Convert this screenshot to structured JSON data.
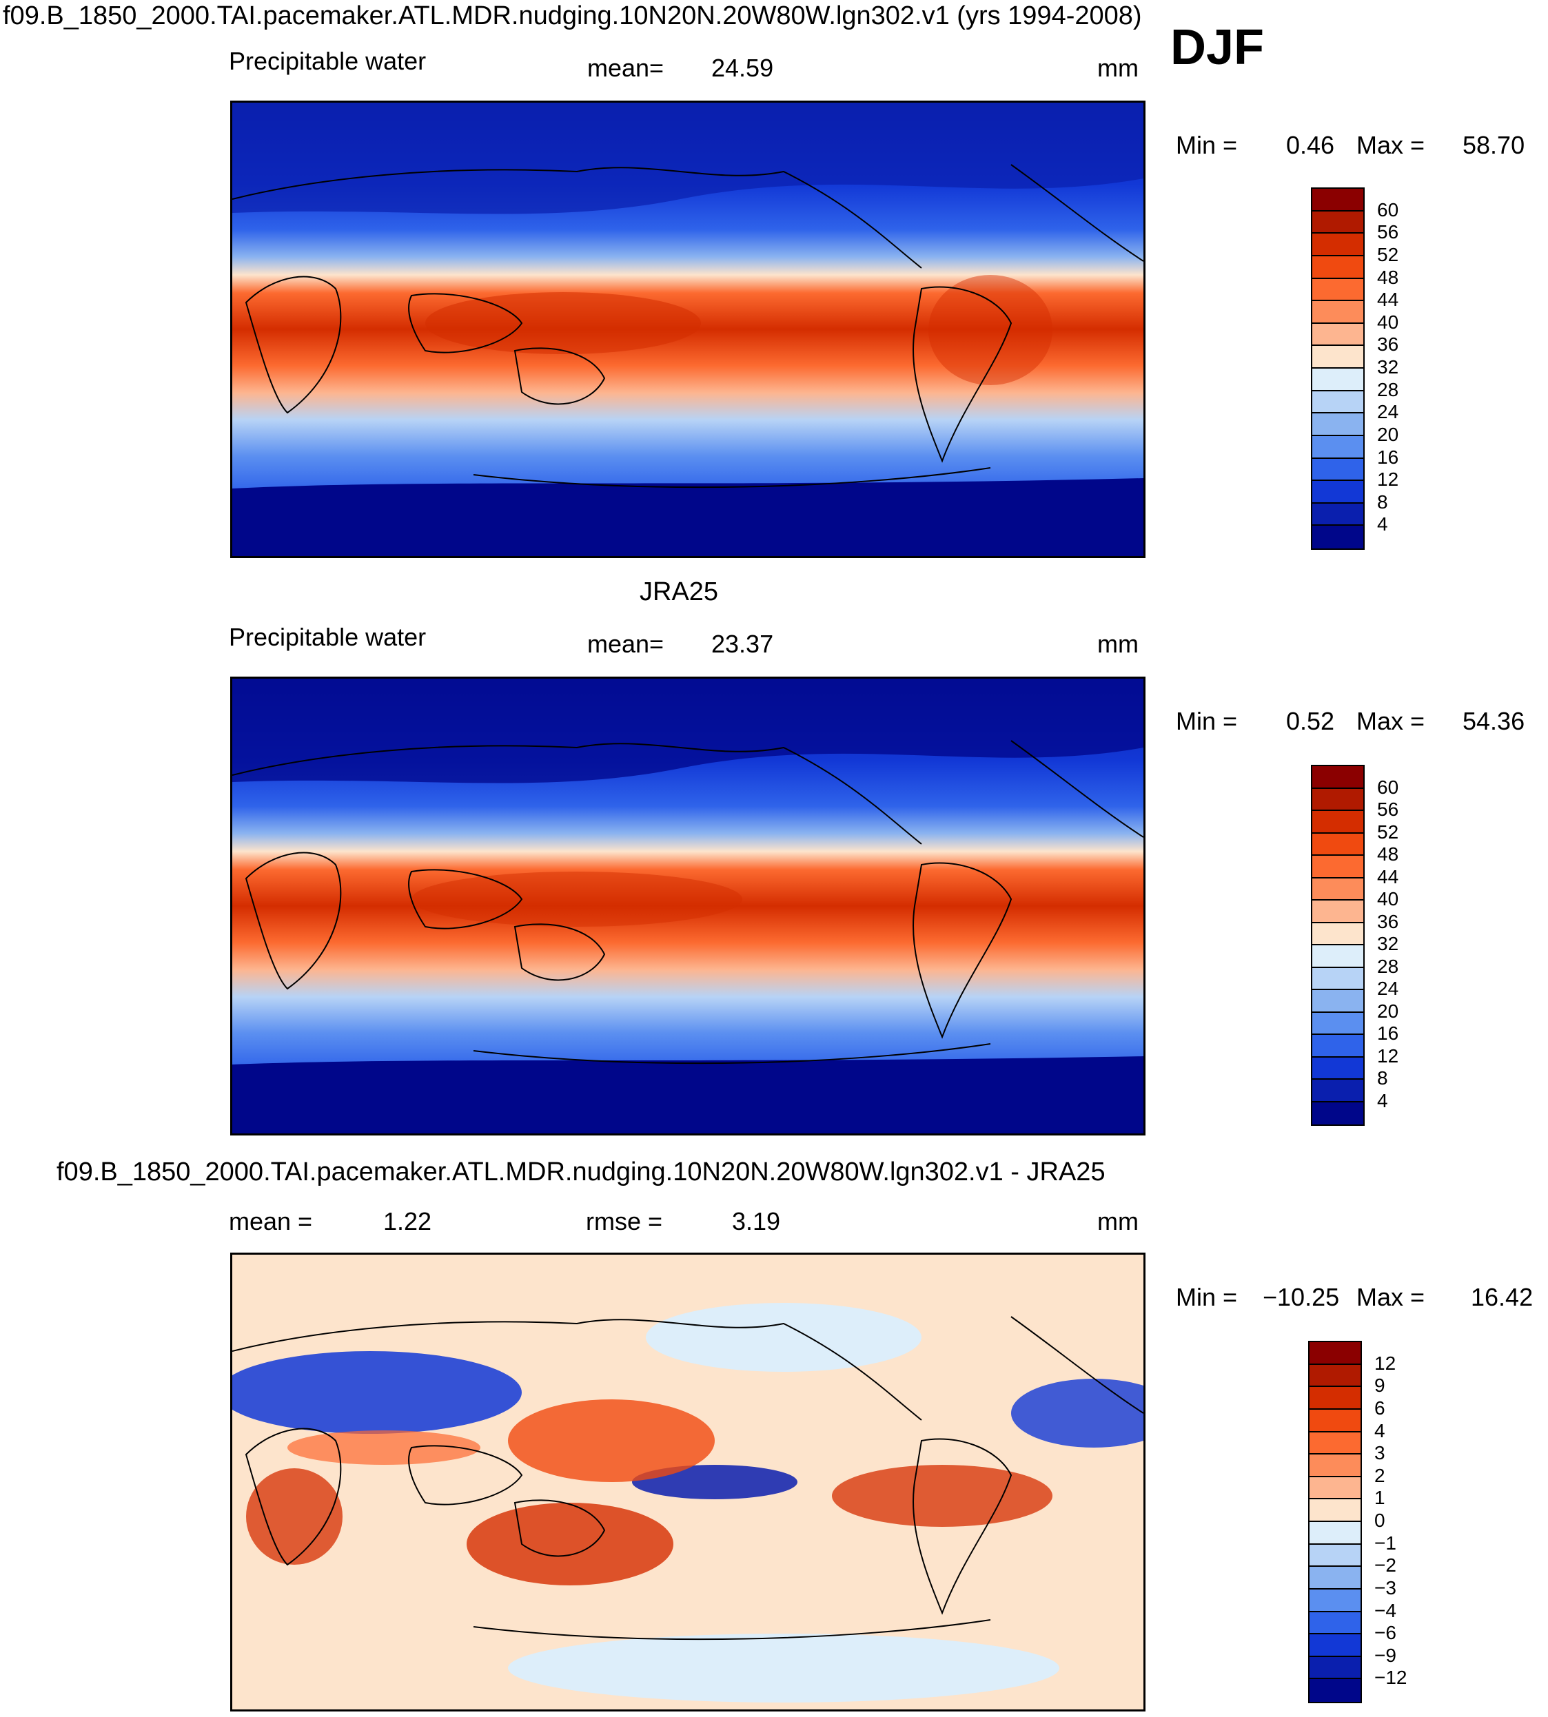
{
  "title": "f09.B_1850_2000.TAI.pacemaker.ATL.MDR.nudging.10N20N.20W80W.lgn302.v1 (yrs 1994-2008)",
  "season": "DJF",
  "chart_data": [
    {
      "type": "heatmap",
      "panel_title": "",
      "variable": "Precipitable water",
      "stat_label": "mean=",
      "stat_value": "24.59",
      "units": "mm",
      "min_label": "Min =",
      "min_value": "0.46",
      "max_label": "Max =",
      "max_value": "58.70",
      "colorbar_levels": [
        "60",
        "56",
        "52",
        "48",
        "44",
        "40",
        "36",
        "32",
        "28",
        "24",
        "20",
        "16",
        "12",
        "8",
        "4"
      ],
      "colorbar_colors": [
        "#8b0000",
        "#b01a00",
        "#d42d00",
        "#f04a10",
        "#fc6a30",
        "#fd8c5a",
        "#fdb590",
        "#fde4cc",
        "#ddeefa",
        "#b7d3f6",
        "#8ab3f0",
        "#5b8ff0",
        "#2f63ea",
        "#1238d6",
        "#0a1fae",
        "#00068a"
      ]
    },
    {
      "type": "heatmap",
      "panel_title": "JRA25",
      "variable": "Precipitable water",
      "stat_label": "mean=",
      "stat_value": "23.37",
      "units": "mm",
      "min_label": "Min =",
      "min_value": "0.52",
      "max_label": "Max =",
      "max_value": "54.36",
      "colorbar_levels": [
        "60",
        "56",
        "52",
        "48",
        "44",
        "40",
        "36",
        "32",
        "28",
        "24",
        "20",
        "16",
        "12",
        "8",
        "4"
      ],
      "colorbar_colors": [
        "#8b0000",
        "#b01a00",
        "#d42d00",
        "#f04a10",
        "#fc6a30",
        "#fd8c5a",
        "#fdb590",
        "#fde4cc",
        "#ddeefa",
        "#b7d3f6",
        "#8ab3f0",
        "#5b8ff0",
        "#2f63ea",
        "#1238d6",
        "#0a1fae",
        "#00068a"
      ]
    },
    {
      "type": "heatmap",
      "panel_title": "f09.B_1850_2000.TAI.pacemaker.ATL.MDR.nudging.10N20N.20W80W.lgn302.v1 - JRA25",
      "variable": "",
      "stat_label": "mean =",
      "stat_value": "1.22",
      "stat2_label": "rmse =",
      "stat2_value": "3.19",
      "units": "mm",
      "min_label": "Min =",
      "min_value": "−10.25",
      "max_label": "Max =",
      "max_value": "16.42",
      "colorbar_levels": [
        "12",
        "9",
        "6",
        "4",
        "3",
        "2",
        "1",
        "0",
        "−1",
        "−2",
        "−3",
        "−4",
        "−6",
        "−9",
        "−12"
      ],
      "colorbar_colors": [
        "#8b0000",
        "#b01a00",
        "#d42d00",
        "#f04a10",
        "#fc6a30",
        "#fd8c5a",
        "#fdb590",
        "#fde4cc",
        "#ddeefa",
        "#b7d3f6",
        "#8ab3f0",
        "#5b8ff0",
        "#2f63ea",
        "#1238d6",
        "#0a1fae",
        "#00068a"
      ]
    }
  ]
}
